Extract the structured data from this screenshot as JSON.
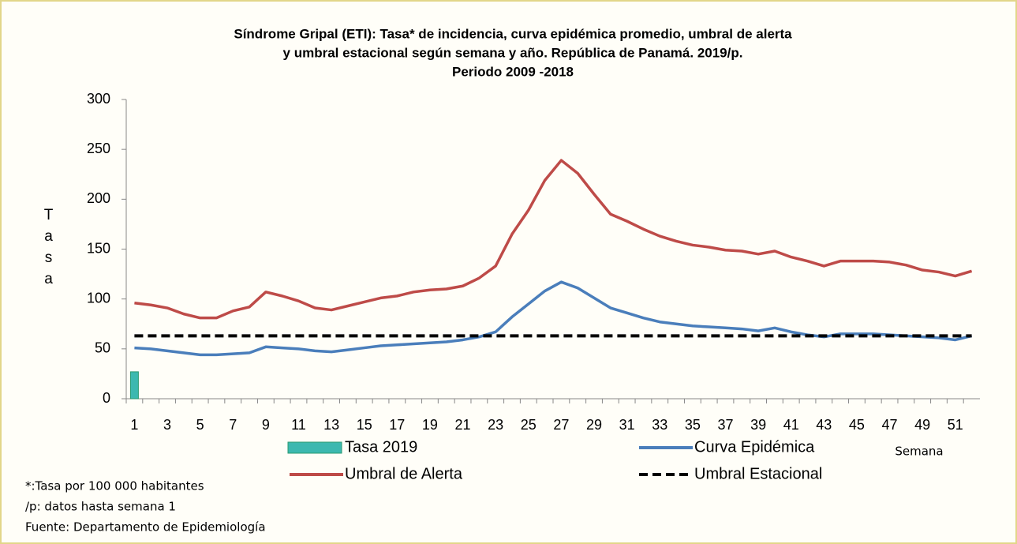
{
  "chart_data": {
    "type": "line",
    "title": [
      "Síndrome Gripal (ETI): Tasa* de incidencia, curva epidémica promedio, umbral de alerta",
      "y umbral estacional según semana y año. República de Panamá. 2019/p.",
      "Periodo 2009 -2018"
    ],
    "y_label": "Tasa",
    "x_label": "Semana",
    "categories": [
      1,
      null,
      3,
      null,
      5,
      null,
      7,
      null,
      9,
      null,
      11,
      null,
      13,
      null,
      15,
      null,
      17,
      null,
      19,
      null,
      21,
      null,
      23,
      null,
      25,
      null,
      27,
      null,
      29,
      null,
      31,
      null,
      33,
      null,
      35,
      null,
      37,
      null,
      39,
      null,
      41,
      null,
      43,
      null,
      45,
      null,
      47,
      null,
      49,
      null,
      51,
      null
    ],
    "ylim": [
      0,
      300
    ],
    "yticks": [
      0,
      50,
      100,
      150,
      200,
      250,
      300
    ],
    "series": [
      {
        "name": "Tasa 2019",
        "type": "bar",
        "color": "#3cb8b0",
        "values": [
          27,
          null,
          null,
          null,
          null,
          null,
          null,
          null,
          null,
          null,
          null,
          null,
          null,
          null,
          null,
          null,
          null,
          null,
          null,
          null,
          null,
          null,
          null,
          null,
          null,
          null,
          null,
          null,
          null,
          null,
          null,
          null,
          null,
          null,
          null,
          null,
          null,
          null,
          null,
          null,
          null,
          null,
          null,
          null,
          null,
          null,
          null,
          null,
          null,
          null,
          null,
          null
        ]
      },
      {
        "name": "Curva Epidémica",
        "color": "#4a7ebb",
        "values": [
          51,
          50,
          48,
          46,
          44,
          44,
          45,
          46,
          52,
          51,
          50,
          48,
          47,
          49,
          51,
          53,
          54,
          55,
          56,
          57,
          59,
          62,
          67,
          82,
          95,
          108,
          117,
          111,
          101,
          91,
          86,
          81,
          77,
          75,
          73,
          72,
          71,
          70,
          68,
          71,
          67,
          64,
          62,
          65,
          65,
          65,
          64,
          63,
          62,
          61,
          59,
          63
        ]
      },
      {
        "name": "Umbral de Alerta",
        "color": "#be4b48",
        "values": [
          96,
          94,
          91,
          85,
          81,
          81,
          88,
          92,
          107,
          103,
          98,
          91,
          89,
          93,
          97,
          101,
          103,
          107,
          109,
          110,
          113,
          121,
          133,
          165,
          189,
          219,
          239,
          226,
          205,
          185,
          178,
          170,
          163,
          158,
          154,
          152,
          149,
          148,
          145,
          148,
          142,
          138,
          133,
          138,
          138,
          138,
          137,
          134,
          129,
          127,
          123,
          128
        ]
      },
      {
        "name": "Umbral Estacional",
        "color": "#000000",
        "dashed": true,
        "values": [
          63,
          63,
          63,
          63,
          63,
          63,
          63,
          63,
          63,
          63,
          63,
          63,
          63,
          63,
          63,
          63,
          63,
          63,
          63,
          63,
          63,
          63,
          63,
          63,
          63,
          63,
          63,
          63,
          63,
          63,
          63,
          63,
          63,
          63,
          63,
          63,
          63,
          63,
          63,
          63,
          63,
          63,
          63,
          63,
          63,
          63,
          63,
          63,
          63,
          63,
          63,
          63
        ]
      }
    ],
    "notes": [
      "*:Tasa por 100 000 habitantes",
      "/p: datos hasta semana 1",
      "Fuente: Departamento de Epidemiología"
    ]
  }
}
